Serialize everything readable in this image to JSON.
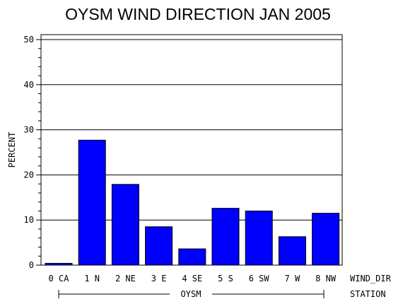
{
  "chart_data": {
    "type": "bar",
    "title": "OYSM WIND DIRECTION JAN 2005",
    "ylabel": "PERCENT",
    "xlabel": "WIND_DIR",
    "group_label": "STATION",
    "group_value": "OYSM",
    "ylim": [
      0,
      50
    ],
    "y_ticks": [
      "0",
      "10",
      "20",
      "30",
      "40",
      "50"
    ],
    "grid": true,
    "categories": [
      "0 CA",
      "1 N",
      "2 NE",
      "3 E",
      "4 SE",
      "5 S",
      "6 SW",
      "7 W",
      "8 NW"
    ],
    "values": [
      0.4,
      27.7,
      17.9,
      8.5,
      3.6,
      12.6,
      12.0,
      6.3,
      11.5
    ],
    "bar_color": "#0000ff"
  }
}
